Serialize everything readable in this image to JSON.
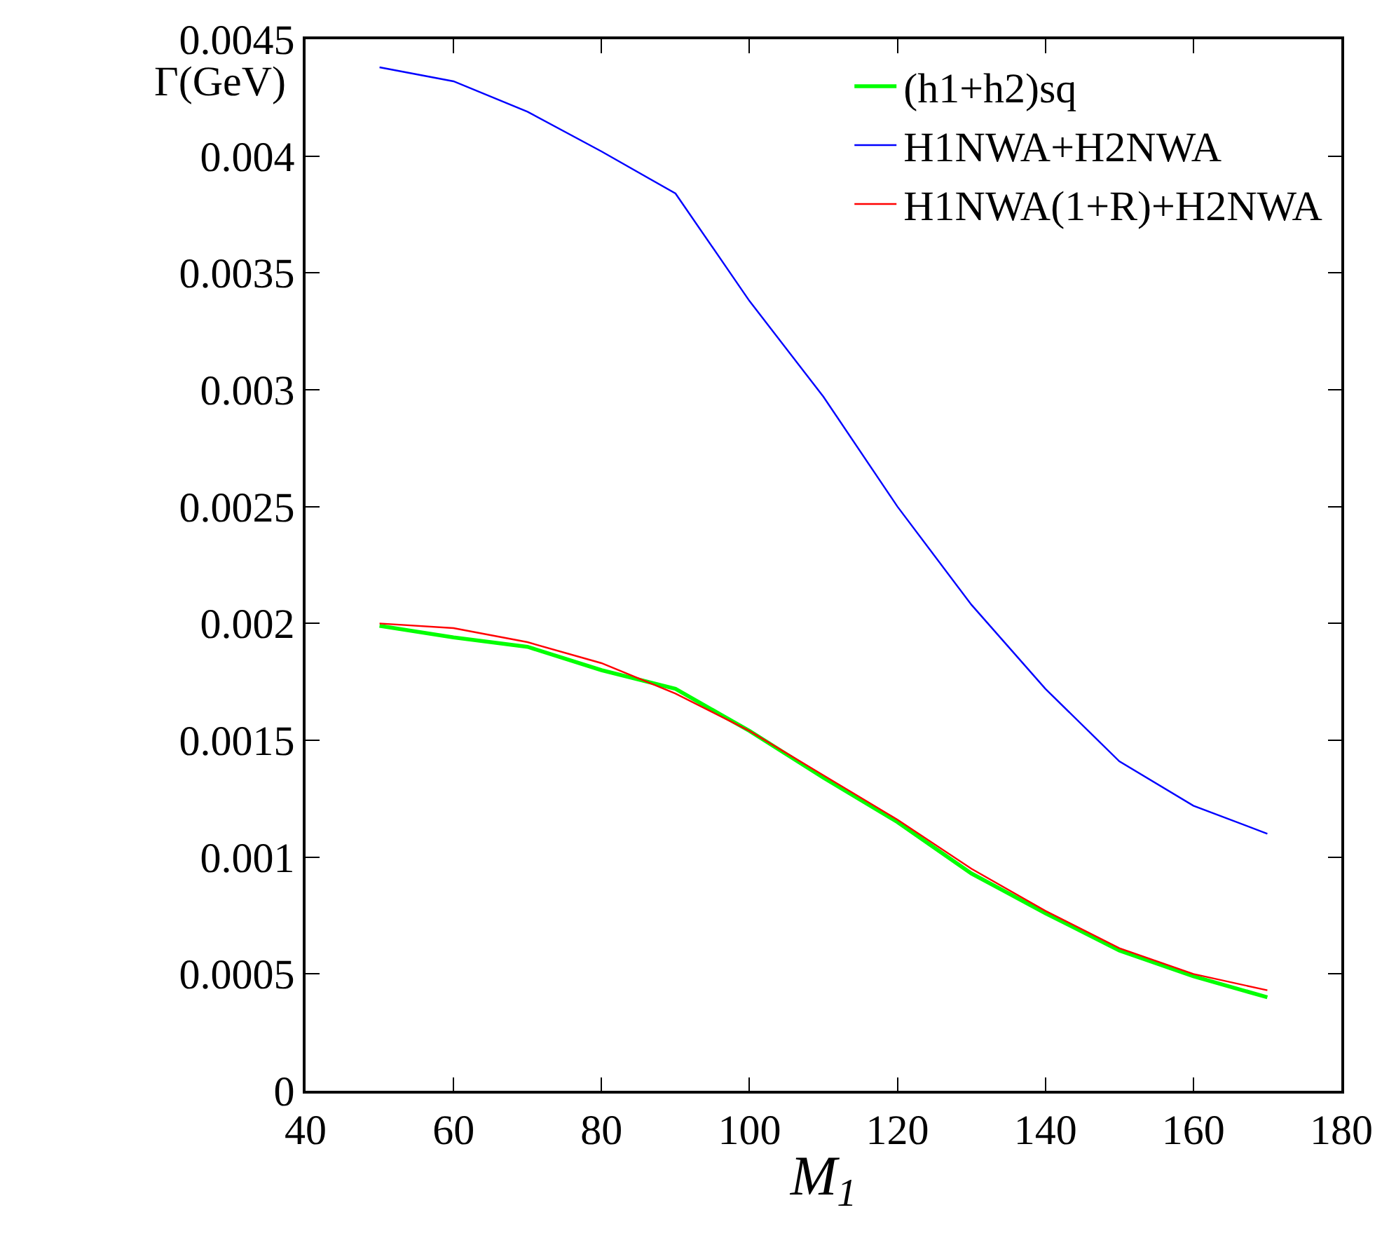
{
  "chart_data": {
    "type": "line",
    "xlabel": "M$_{1}$",
    "ylabel": "Γ(GeV)",
    "x": [
      50,
      60,
      70,
      80,
      90,
      100,
      110,
      120,
      130,
      140,
      150,
      160,
      170
    ],
    "series": [
      {
        "name": "(h1+h2)sq",
        "color": "#00ff00",
        "values": [
          0.00199,
          0.00194,
          0.0019,
          0.0018,
          0.00172,
          0.00154,
          0.00134,
          0.00115,
          0.00093,
          0.00076,
          0.0006,
          0.00049,
          0.0004
        ]
      },
      {
        "name": "H1NWA+H2NWA",
        "color": "#0000ff",
        "values": [
          0.00438,
          0.00432,
          0.00419,
          0.00402,
          0.00384,
          0.00338,
          0.00297,
          0.0025,
          0.00208,
          0.00172,
          0.00141,
          0.00122,
          0.0011
        ]
      },
      {
        "name": "H1NWA(1+R)+H2NWA",
        "color": "#ff0000",
        "values": [
          0.002,
          0.00198,
          0.00192,
          0.00183,
          0.0017,
          0.00154,
          0.00135,
          0.00116,
          0.00095,
          0.00077,
          0.00061,
          0.0005,
          0.00043
        ]
      }
    ],
    "xlim": [
      40,
      180
    ],
    "xticks": [
      40,
      60,
      80,
      100,
      120,
      140,
      160,
      180
    ],
    "ylim": [
      0,
      0.0045
    ],
    "yticks": [
      0,
      0.0005,
      0.001,
      0.0015,
      0.002,
      0.0025,
      0.003,
      0.0035,
      0.004,
      0.0045
    ],
    "legend": "top right",
    "marker": "none",
    "line_style": "solid"
  }
}
